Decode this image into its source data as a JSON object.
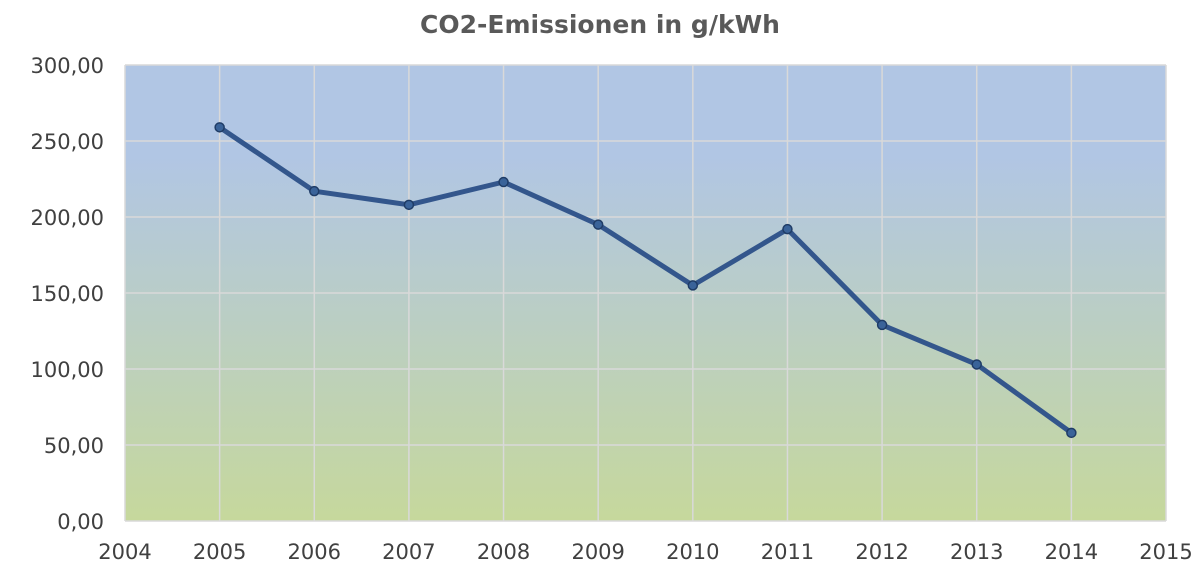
{
  "chart_data": {
    "type": "line",
    "title": "CO2-Emissionen in g/kWh",
    "xlabel": "",
    "ylabel": "",
    "xlim": [
      2004,
      2015
    ],
    "ylim": [
      0,
      300
    ],
    "x_ticks": [
      "2004",
      "2005",
      "2006",
      "2007",
      "2008",
      "2009",
      "2010",
      "2011",
      "2012",
      "2013",
      "2014",
      "2015"
    ],
    "y_ticks": [
      "0,00",
      "50,00",
      "100,00",
      "150,00",
      "200,00",
      "250,00",
      "300,00"
    ],
    "grid": true,
    "legend": "none",
    "background_gradient": [
      "#b1c6e4",
      "#c6d89c"
    ],
    "series": [
      {
        "color": "#33568c",
        "x": [
          2005,
          2006,
          2007,
          2008,
          2009,
          2010,
          2011,
          2012,
          2013,
          2014
        ],
        "y": [
          259,
          217,
          208,
          223,
          195,
          155,
          192,
          129,
          103,
          58
        ]
      }
    ]
  }
}
